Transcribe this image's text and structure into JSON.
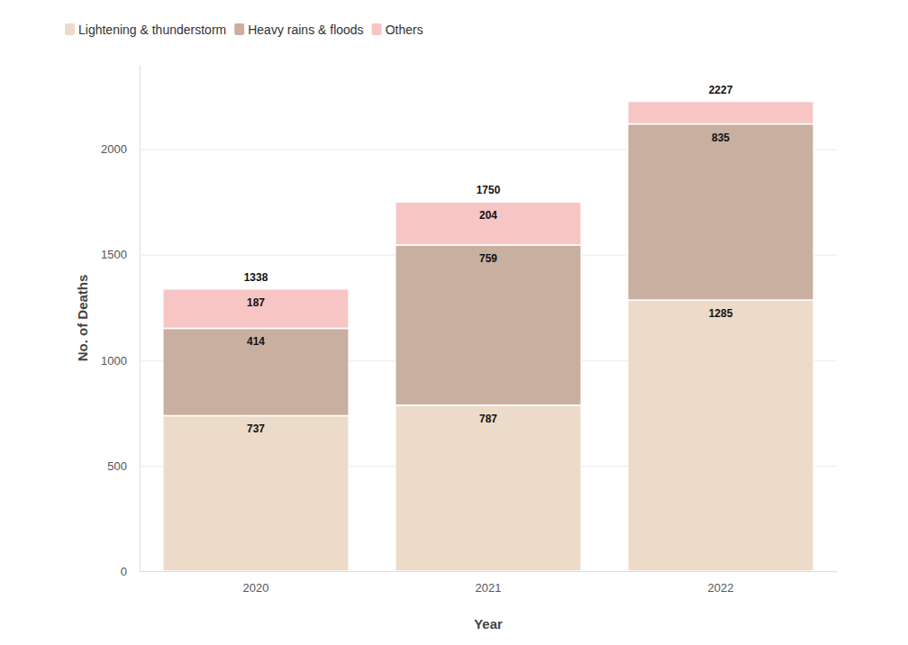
{
  "chart_data": {
    "type": "bar",
    "stacked": true,
    "data_labels": true,
    "grid": true,
    "legend": "top-left",
    "x_label": "Year",
    "y_label": "No. of Deaths",
    "categories": [
      "2020",
      "2021",
      "2022"
    ],
    "series": [
      {
        "name": "Lightening & thunderstorm",
        "color": "#ecdbc8",
        "values": [
          737,
          787,
          1285
        ]
      },
      {
        "name": "Heavy rains & floods",
        "color": "#c8afa0",
        "values": [
          414,
          759,
          835
        ]
      },
      {
        "name": "Others",
        "color": "#f8c5c5",
        "values": [
          187,
          204,
          107
        ],
        "value_labels": [
          "187",
          "204",
          null
        ]
      }
    ],
    "totals": [
      1338,
      1750,
      2227
    ],
    "ylim": [
      0,
      2400
    ],
    "yticks": [
      0,
      500,
      1000,
      1500,
      2000
    ]
  }
}
